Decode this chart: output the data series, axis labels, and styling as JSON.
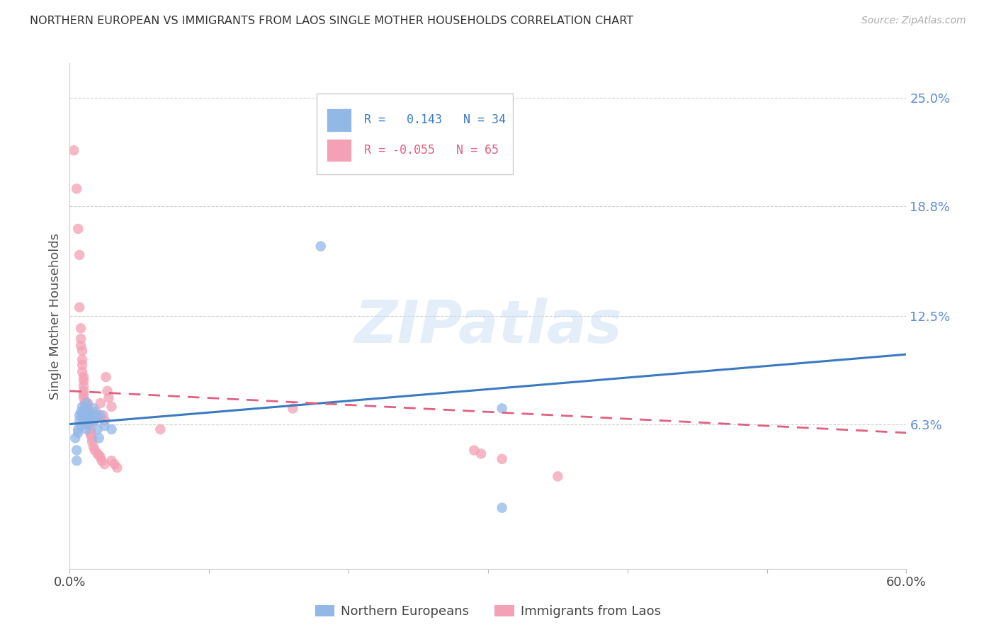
{
  "title": "NORTHERN EUROPEAN VS IMMIGRANTS FROM LAOS SINGLE MOTHER HOUSEHOLDS CORRELATION CHART",
  "source": "Source: ZipAtlas.com",
  "ylabel": "Single Mother Households",
  "xlim": [
    0.0,
    0.6
  ],
  "ylim": [
    -0.02,
    0.27
  ],
  "blue_color": "#92b8e8",
  "pink_color": "#f4a0b5",
  "blue_line_color": "#3a7abf",
  "pink_line_color": "#e06080",
  "watermark": "ZIPatlas",
  "background_color": "#ffffff",
  "grid_color": "#d0d0d0",
  "blue_scatter": [
    [
      0.004,
      0.055
    ],
    [
      0.005,
      0.048
    ],
    [
      0.005,
      0.042
    ],
    [
      0.006,
      0.06
    ],
    [
      0.006,
      0.058
    ],
    [
      0.007,
      0.065
    ],
    [
      0.007,
      0.068
    ],
    [
      0.008,
      0.07
    ],
    [
      0.008,
      0.062
    ],
    [
      0.009,
      0.068
    ],
    [
      0.009,
      0.073
    ],
    [
      0.01,
      0.07
    ],
    [
      0.01,
      0.068
    ],
    [
      0.01,
      0.065
    ],
    [
      0.011,
      0.072
    ],
    [
      0.011,
      0.068
    ],
    [
      0.012,
      0.075
    ],
    [
      0.012,
      0.06
    ],
    [
      0.013,
      0.068
    ],
    [
      0.013,
      0.063
    ],
    [
      0.014,
      0.07
    ],
    [
      0.015,
      0.065
    ],
    [
      0.016,
      0.068
    ],
    [
      0.017,
      0.072
    ],
    [
      0.018,
      0.065
    ],
    [
      0.019,
      0.068
    ],
    [
      0.02,
      0.06
    ],
    [
      0.021,
      0.055
    ],
    [
      0.022,
      0.068
    ],
    [
      0.025,
      0.062
    ],
    [
      0.03,
      0.06
    ],
    [
      0.18,
      0.165
    ],
    [
      0.31,
      0.072
    ],
    [
      0.31,
      0.015
    ]
  ],
  "pink_scatter": [
    [
      0.003,
      0.22
    ],
    [
      0.005,
      0.198
    ],
    [
      0.006,
      0.175
    ],
    [
      0.007,
      0.16
    ],
    [
      0.007,
      0.13
    ],
    [
      0.008,
      0.118
    ],
    [
      0.008,
      0.112
    ],
    [
      0.008,
      0.108
    ],
    [
      0.009,
      0.105
    ],
    [
      0.009,
      0.1
    ],
    [
      0.009,
      0.097
    ],
    [
      0.009,
      0.093
    ],
    [
      0.01,
      0.09
    ],
    [
      0.01,
      0.088
    ],
    [
      0.01,
      0.085
    ],
    [
      0.01,
      0.082
    ],
    [
      0.01,
      0.08
    ],
    [
      0.01,
      0.078
    ],
    [
      0.011,
      0.076
    ],
    [
      0.011,
      0.074
    ],
    [
      0.011,
      0.072
    ],
    [
      0.011,
      0.07
    ],
    [
      0.012,
      0.068
    ],
    [
      0.012,
      0.068
    ],
    [
      0.012,
      0.065
    ],
    [
      0.012,
      0.063
    ],
    [
      0.013,
      0.075
    ],
    [
      0.013,
      0.072
    ],
    [
      0.013,
      0.07
    ],
    [
      0.013,
      0.068
    ],
    [
      0.014,
      0.065
    ],
    [
      0.014,
      0.063
    ],
    [
      0.015,
      0.06
    ],
    [
      0.015,
      0.058
    ],
    [
      0.015,
      0.057
    ],
    [
      0.016,
      0.055
    ],
    [
      0.016,
      0.053
    ],
    [
      0.017,
      0.065
    ],
    [
      0.017,
      0.05
    ],
    [
      0.018,
      0.048
    ],
    [
      0.019,
      0.07
    ],
    [
      0.02,
      0.068
    ],
    [
      0.02,
      0.046
    ],
    [
      0.021,
      0.045
    ],
    [
      0.022,
      0.075
    ],
    [
      0.022,
      0.044
    ],
    [
      0.023,
      0.042
    ],
    [
      0.024,
      0.068
    ],
    [
      0.025,
      0.065
    ],
    [
      0.025,
      0.04
    ],
    [
      0.026,
      0.09
    ],
    [
      0.027,
      0.082
    ],
    [
      0.028,
      0.078
    ],
    [
      0.03,
      0.073
    ],
    [
      0.03,
      0.042
    ],
    [
      0.032,
      0.04
    ],
    [
      0.034,
      0.038
    ],
    [
      0.065,
      0.06
    ],
    [
      0.16,
      0.072
    ],
    [
      0.29,
      0.048
    ],
    [
      0.295,
      0.046
    ],
    [
      0.31,
      0.043
    ],
    [
      0.35,
      0.033
    ]
  ],
  "blue_line_x0": 0.0,
  "blue_line_y0": 0.063,
  "blue_line_x1": 0.6,
  "blue_line_y1": 0.103,
  "pink_line_x0": 0.0,
  "pink_line_y0": 0.082,
  "pink_line_x1": 0.6,
  "pink_line_y1": 0.058,
  "ytick_values": [
    0.063,
    0.125,
    0.188,
    0.25
  ],
  "ytick_labels": [
    "6.3%",
    "12.5%",
    "18.8%",
    "25.0%"
  ]
}
